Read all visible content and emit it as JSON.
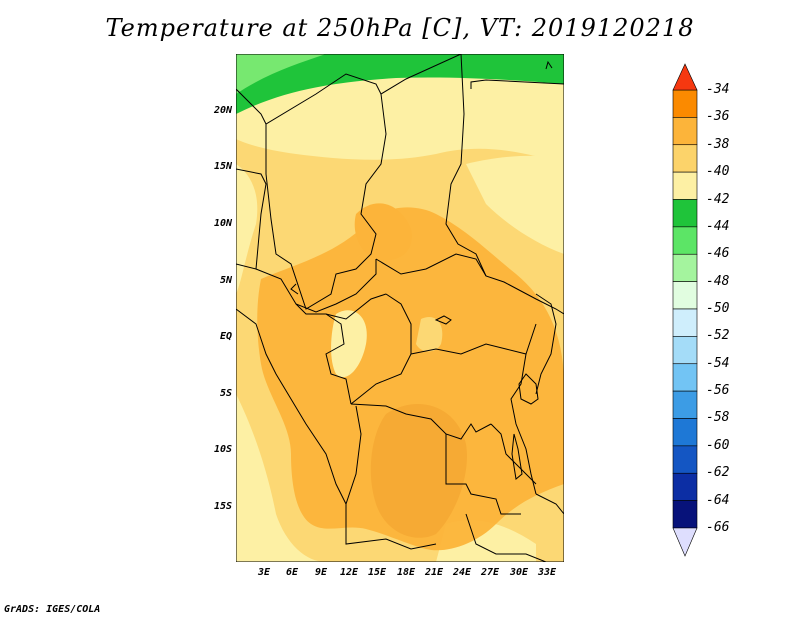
{
  "title": "Temperature at 250hPa [C], VT: 2019120218",
  "credit": "GrADS: IGES/COLA",
  "axes": {
    "lat_labels": [
      "20N",
      "15N",
      "10N",
      "5N",
      "EQ",
      "5S",
      "10S",
      "15S"
    ],
    "lon_labels": [
      "3E",
      "6E",
      "9E",
      "12E",
      "15E",
      "18E",
      "21E",
      "24E",
      "27E",
      "30E",
      "33E"
    ]
  },
  "colorbar": {
    "labels": [
      "-34",
      "-36",
      "-38",
      "-40",
      "-42",
      "-44",
      "-46",
      "-48",
      "-50",
      "-52",
      "-54",
      "-56",
      "-58",
      "-60",
      "-62",
      "-64",
      "-66"
    ],
    "colors": [
      "#fb5a00",
      "#fb8a00",
      "#fcb43a",
      "#fcd36a",
      "#fdf0a4",
      "#1fc43a",
      "#5ce566",
      "#a4f49e",
      "#e1fde0",
      "#cfeefc",
      "#a4dcf8",
      "#72c4f4",
      "#3c9ce5",
      "#1e78d6",
      "#1456c3",
      "#0c2ea4",
      "#07127a"
    ],
    "top_tip_color": "#f63810",
    "bottom_tip_color": "#dedefe"
  },
  "colors": {
    "c36": "#fcb43a",
    "c38": "#fcca55",
    "c40": "#fcd874",
    "c42": "#fdf0a4",
    "c44": "#1fc43a",
    "c46": "#77e870"
  }
}
